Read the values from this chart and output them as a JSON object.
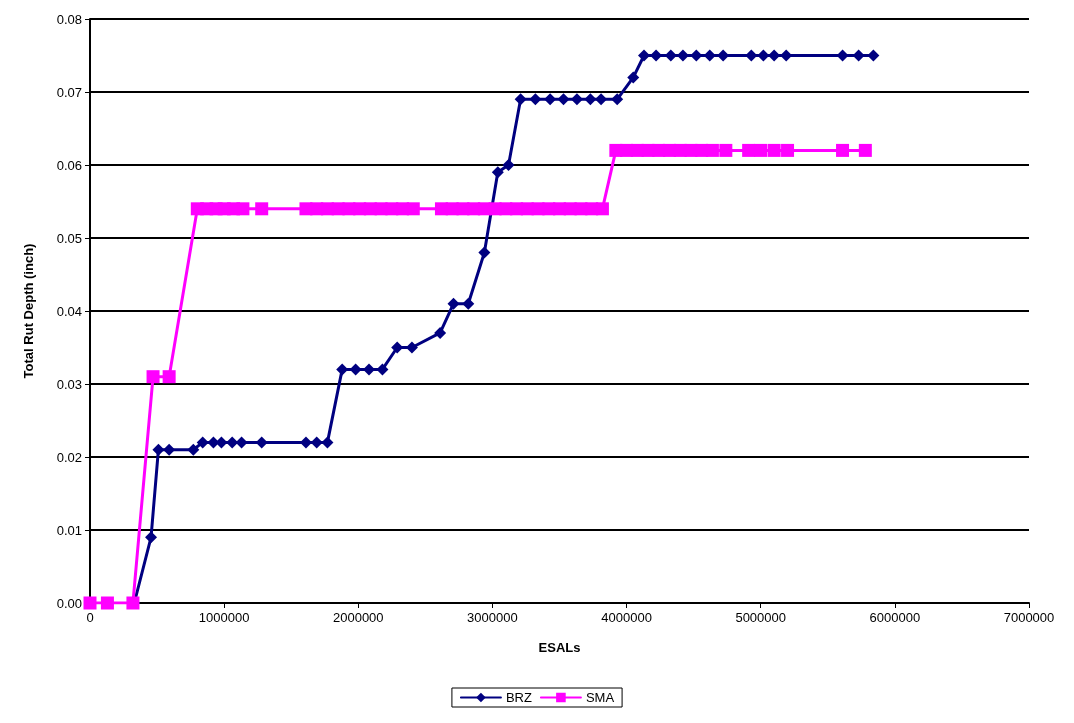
{
  "chart_data": {
    "type": "line",
    "xlabel": "ESALs",
    "ylabel": "Total Rut Depth (inch)",
    "xlim": [
      0,
      7000000
    ],
    "xticks": [
      0,
      1000000,
      2000000,
      3000000,
      4000000,
      5000000,
      6000000,
      7000000
    ],
    "ylim": [
      0,
      0.08
    ],
    "yticks": [
      {
        "value": 0,
        "label": "0.00"
      },
      {
        "value": 0.01,
        "label": "0.01"
      },
      {
        "value": 0.02,
        "label": "0.02"
      },
      {
        "value": 0.03,
        "label": "0.03"
      },
      {
        "value": 0.04,
        "label": "0.04"
      },
      {
        "value": 0.05,
        "label": "0.05"
      },
      {
        "value": 0.06,
        "label": "0.06"
      },
      {
        "value": 0.07,
        "label": "0.07"
      },
      {
        "value": 0.08,
        "label": "0.08"
      }
    ],
    "grid": "y",
    "legend": "bottom",
    "line_style": "solid",
    "series": [
      {
        "name": "BRZ",
        "color": "#000080",
        "marker": "diamond",
        "x": [
          330000,
          455000,
          510000,
          590000,
          770000,
          840000,
          920000,
          980000,
          1060000,
          1130000,
          1280000,
          1610000,
          1690000,
          1770000,
          1880000,
          1980000,
          2080000,
          2180000,
          2290000,
          2400000,
          2610000,
          2710000,
          2820000,
          2940000,
          3040000,
          3120000,
          3210000,
          3320000,
          3430000,
          3530000,
          3630000,
          3730000,
          3810000,
          3930000,
          4050000,
          4130000,
          4220000,
          4330000,
          4420000,
          4520000,
          4620000,
          4720000,
          4930000,
          5020000,
          5100000,
          5190000,
          5610000,
          5730000,
          5840000
        ],
        "values": [
          0,
          0.009,
          0.021,
          0.021,
          0.021,
          0.022,
          0.022,
          0.022,
          0.022,
          0.022,
          0.022,
          0.022,
          0.022,
          0.022,
          0.032,
          0.032,
          0.032,
          0.032,
          0.035,
          0.035,
          0.037,
          0.041,
          0.041,
          0.048,
          0.059,
          0.06,
          0.069,
          0.069,
          0.069,
          0.069,
          0.069,
          0.069,
          0.069,
          0.069,
          0.072,
          0.075,
          0.075,
          0.075,
          0.075,
          0.075,
          0.075,
          0.075,
          0.075,
          0.075,
          0.075,
          0.075,
          0.075,
          0.075,
          0.075
        ]
      },
      {
        "name": "SMA",
        "color": "#ff00ff",
        "marker": "square",
        "x": [
          0,
          130000,
          320000,
          470000,
          590000,
          800000,
          870000,
          940000,
          1000000,
          1070000,
          1140000,
          1280000,
          1610000,
          1690000,
          1770000,
          1850000,
          1930000,
          2010000,
          2090000,
          2170000,
          2250000,
          2330000,
          2410000,
          2620000,
          2700000,
          2780000,
          2860000,
          2940000,
          3020000,
          3100000,
          3180000,
          3260000,
          3340000,
          3420000,
          3500000,
          3580000,
          3660000,
          3740000,
          3820000,
          3920000,
          4000000,
          4080000,
          4160000,
          4240000,
          4320000,
          4400000,
          4480000,
          4560000,
          4640000,
          4740000,
          4910000,
          5000000,
          5100000,
          5200000,
          5610000,
          5780000
        ],
        "values": [
          0,
          0,
          0,
          0.031,
          0.031,
          0.054,
          0.054,
          0.054,
          0.054,
          0.054,
          0.054,
          0.054,
          0.054,
          0.054,
          0.054,
          0.054,
          0.054,
          0.054,
          0.054,
          0.054,
          0.054,
          0.054,
          0.054,
          0.054,
          0.054,
          0.054,
          0.054,
          0.054,
          0.054,
          0.054,
          0.054,
          0.054,
          0.054,
          0.054,
          0.054,
          0.054,
          0.054,
          0.054,
          0.054,
          0.062,
          0.062,
          0.062,
          0.062,
          0.062,
          0.062,
          0.062,
          0.062,
          0.062,
          0.062,
          0.062,
          0.062,
          0.062,
          0.062,
          0.062,
          0.062,
          0.062
        ]
      }
    ]
  }
}
